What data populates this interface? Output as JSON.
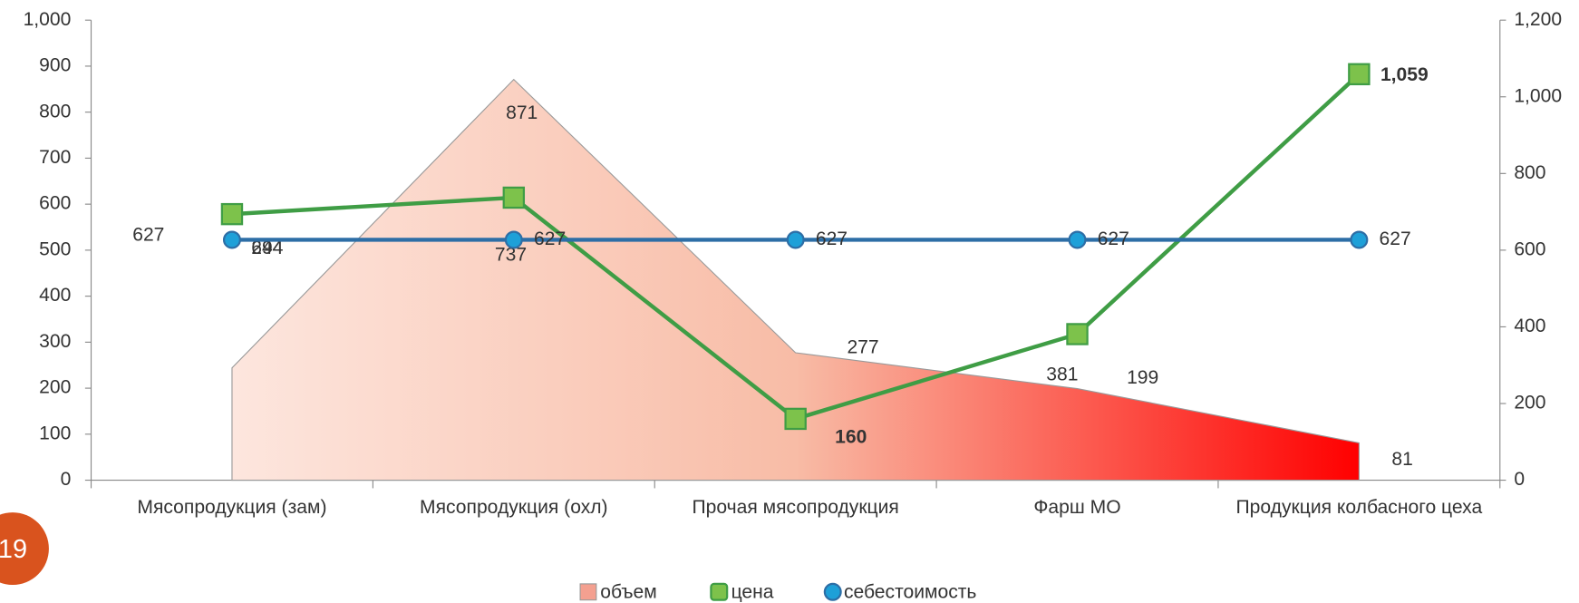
{
  "chart_data": {
    "type": "combo",
    "categories": [
      "Мясопродукция (зам)",
      "Мясопродукция (охл)",
      "Прочая мясопродукция",
      "Фарш МО",
      "Продукция колбасного цеха"
    ],
    "series": [
      {
        "name": "объем",
        "type": "area",
        "color": "#ff0000",
        "values": [
          244,
          871,
          277,
          199,
          81
        ]
      },
      {
        "name": "цена",
        "type": "line",
        "axis": "y2",
        "color": "#3f9d45",
        "values": [
          694,
          737,
          160,
          381,
          1059
        ],
        "value_labels": [
          "694",
          "737",
          "160",
          "381",
          "1,059"
        ]
      },
      {
        "name": "себестоимость",
        "type": "line",
        "axis": "y2",
        "color": "#2d6ea6",
        "values": [
          627,
          627,
          627,
          627,
          627
        ]
      }
    ],
    "ylim": [
      0,
      1000
    ],
    "yticks": [
      0,
      100,
      200,
      300,
      400,
      500,
      600,
      700,
      800,
      900,
      {
        "value": 1000,
        "label": "1,000"
      }
    ],
    "y2lim": [
      0,
      1200
    ],
    "y2ticks": [
      0,
      200,
      400,
      600,
      800,
      {
        "value": 1000,
        "label": "1,000"
      },
      {
        "value": 1200,
        "label": "1,200"
      }
    ],
    "legend": "bottom",
    "grid": false
  },
  "slide_number": "19"
}
